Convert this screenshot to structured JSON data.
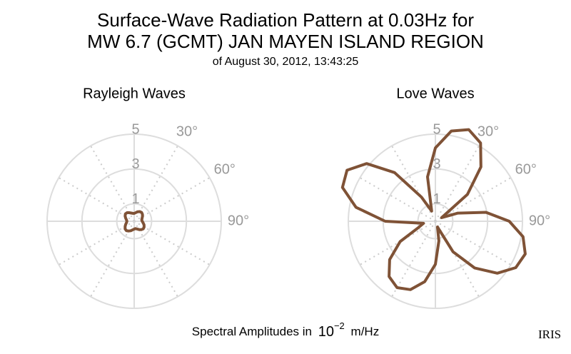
{
  "header": {
    "title": [
      "Surface-Wave Radiation Pattern at 0.03Hz for",
      "MW 6.7 (GCMT) JAN MAYEN ISLAND REGION"
    ],
    "subtitle": "of August 30, 2012, 13:43:25"
  },
  "chart_data": [
    {
      "type": "polar",
      "title": "Rayleigh Waves",
      "color": "#7f5236",
      "theta": [
        0,
        10,
        20,
        30,
        40,
        50,
        60,
        70,
        80,
        90,
        100,
        110,
        120,
        130,
        140,
        150,
        160,
        170,
        180,
        190,
        200,
        210,
        220,
        230,
        240,
        250,
        260,
        270,
        280,
        290,
        300,
        310,
        320,
        330,
        340,
        350
      ],
      "values": [
        0.45,
        0.5,
        0.58,
        0.64,
        0.66,
        0.62,
        0.55,
        0.48,
        0.44,
        0.46,
        0.52,
        0.6,
        0.66,
        0.68,
        0.63,
        0.55,
        0.47,
        0.43,
        0.45,
        0.5,
        0.58,
        0.65,
        0.7,
        0.68,
        0.6,
        0.52,
        0.45,
        0.42,
        0.45,
        0.52,
        0.6,
        0.66,
        0.64,
        0.57,
        0.5,
        0.46
      ],
      "rlim": [
        0,
        5
      ],
      "rticks": [
        1,
        3,
        5
      ],
      "rgrid": [
        1,
        3,
        5
      ],
      "thetagrid": [
        0,
        30,
        60,
        90,
        120,
        150,
        180,
        210,
        240,
        270,
        300,
        330
      ],
      "thetaticks": [
        {
          "value": 30,
          "label": "30°"
        },
        {
          "value": 60,
          "label": "60°"
        },
        {
          "value": 90,
          "label": "90°"
        }
      ]
    },
    {
      "type": "polar",
      "title": "Love Waves",
      "color": "#7f5236",
      "theta": [
        0,
        10,
        20,
        30,
        40,
        50,
        60,
        70,
        80,
        90,
        100,
        110,
        120,
        130,
        140,
        150,
        160,
        170,
        180,
        190,
        200,
        210,
        220,
        230,
        240,
        250,
        260,
        270,
        280,
        290,
        300,
        310,
        320,
        330,
        340,
        350
      ],
      "values": [
        4.21,
        5.26,
        5.6,
        5.19,
        4.07,
        2.4,
        0.41,
        1.37,
        2.95,
        4.24,
        5.11,
        5.49,
        5.33,
        4.64,
        3.5,
        2.03,
        0.35,
        1.15,
        2.47,
        3.52,
        4.18,
        4.4,
        4.14,
        3.43,
        2.34,
        1.01,
        0.69,
        2.88,
        4.63,
        5.68,
        5.86,
        5.15,
        3.65,
        1.6,
        0.62,
        2.59
      ],
      "rlim": [
        0,
        5
      ],
      "rticks": [
        1,
        3,
        5
      ],
      "rgrid": [
        1,
        3,
        5
      ],
      "thetagrid": [
        0,
        30,
        60,
        90,
        120,
        150,
        180,
        210,
        240,
        270,
        300,
        330
      ],
      "thetaticks": [
        {
          "value": 30,
          "label": "30°"
        },
        {
          "value": 60,
          "label": "60°"
        },
        {
          "value": 90,
          "label": "90°"
        }
      ]
    }
  ],
  "footer": {
    "text": "Spectral Amplitudes in",
    "base": "10",
    "exponent": "−2",
    "unit": "m/Hz"
  },
  "logo": "IRIS"
}
